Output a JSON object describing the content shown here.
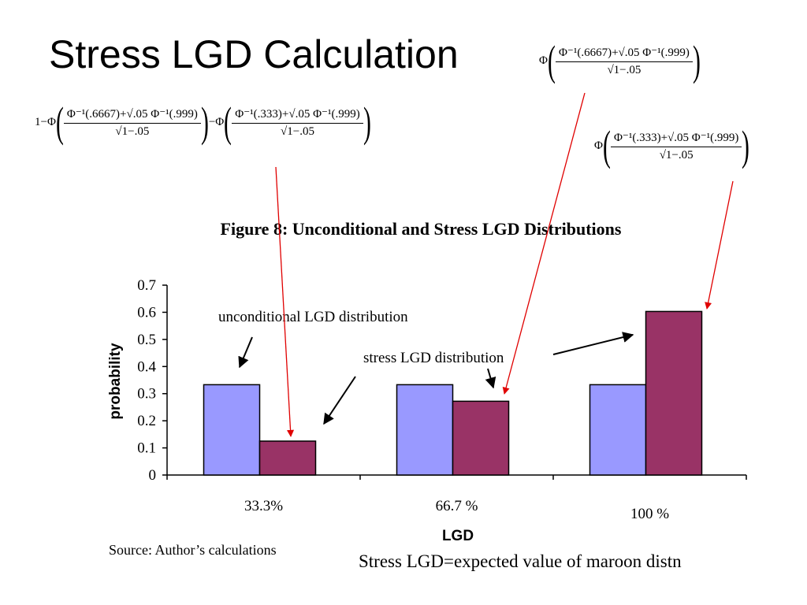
{
  "slide": {
    "title": "Stress LGD Calculation",
    "source_note": "Source: Author’s calculations",
    "footnote": "Stress LGD=expected value of maroon distn"
  },
  "formulas": {
    "left": {
      "prefix": "1−Φ",
      "num_a": "Φ⁻¹(.6667)+√.05 Φ⁻¹(.999)",
      "den": "√1−.05",
      "mid": "−Φ",
      "num_b": "Φ⁻¹(.333)+√.05 Φ⁻¹(.999)"
    },
    "top": {
      "prefix": "Φ",
      "num": "Φ⁻¹(.6667)+√.05 Φ⁻¹(.999)",
      "den": "√1−.05"
    },
    "right": {
      "prefix": "Φ",
      "num": "Φ⁻¹(.333)+√.05 Φ⁻¹(.999)",
      "den": "√1−.05"
    }
  },
  "chart_data": {
    "type": "bar",
    "title": "Figure 8: Unconditional and Stress LGD Distributions",
    "xlabel": "LGD",
    "ylabel": "probability",
    "categories": [
      "33.3%",
      "66.7 %",
      "100 %"
    ],
    "series": [
      {
        "values": [
          0.333,
          0.333,
          0.333
        ],
        "color": "#9999ff"
      },
      {
        "values": [
          0.125,
          0.272,
          0.603
        ],
        "color": "#993366"
      }
    ],
    "ylim": [
      0,
      0.7
    ],
    "yticks": [
      "0",
      "0.1",
      "0.2",
      "0.3",
      "0.4",
      "0.5",
      "0.6",
      "0.7"
    ],
    "grid": false,
    "legend": "none",
    "annotations": {
      "unconditional": "unconditional  LGD distribution",
      "stress": "stress LGD distribution"
    },
    "arrow_color": "#e00000"
  }
}
